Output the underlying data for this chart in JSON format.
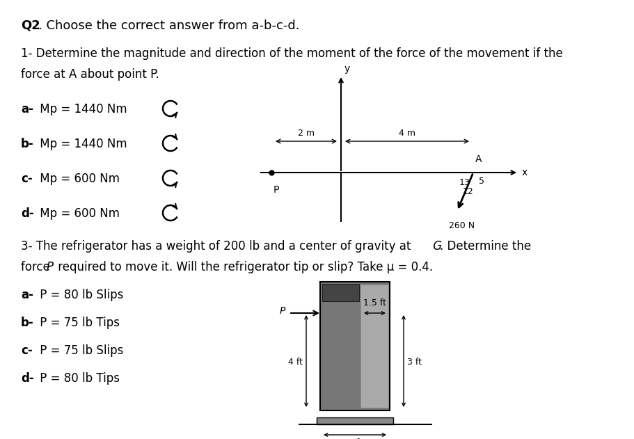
{
  "bg_color": "#ffffff",
  "text_color": "#000000",
  "title_bold": "Q2",
  "title_rest": ". Choose the correct answer from a-b-c-d.",
  "q1_line1": "1- Determine the magnitude and direction of the moment of the force of the movement if the",
  "q1_line2": "force at A about point P.",
  "q1a": "a- Mp = 1440 Nm",
  "q1b": "b- Mp = 1440 Nm",
  "q1c": "c- Mp = 600 Nm",
  "q1d": "d- Mp = 600 Nm",
  "q3_line1": "3- The refrigerator has a weight of 200 lb and a center of gravity at",
  "q3_line1_G": "G",
  "q3_line1_end": ". Determine the",
  "q3_line2_start": "force ",
  "q3_line2_P": "P",
  "q3_line2_end": " required to move it. Will the refrigerator tip or slip? Take μ = 0.4.",
  "q3a": "a- P = 80 lb Slips",
  "q3b": "b- P = 75 lb Tips",
  "q3c": "c- P = 75 lb Slips",
  "q3d": "d- P = 80 lb Tips",
  "fridge_color_dark": "#777777",
  "fridge_color_light": "#aaaaaa",
  "fridge_color_darker": "#555555",
  "fridge_base_color": "#888888"
}
